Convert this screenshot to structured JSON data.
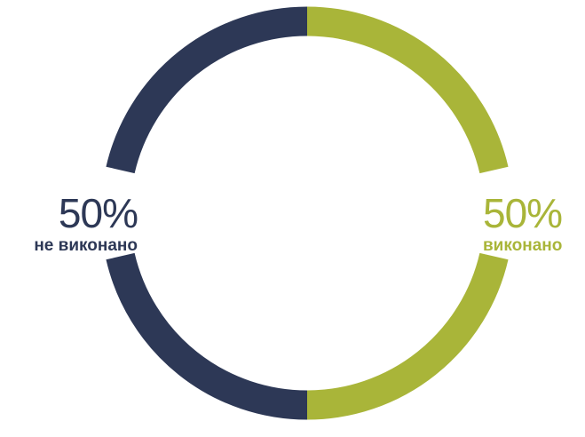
{
  "chart_data": {
    "type": "pie",
    "style": "donut",
    "categories": [
      "не виконано",
      "виконано"
    ],
    "values": [
      50,
      50
    ],
    "colors": [
      "#2d3856",
      "#a9b539"
    ],
    "value_labels": [
      "50%",
      "50%"
    ],
    "legend": "none",
    "title": ""
  }
}
